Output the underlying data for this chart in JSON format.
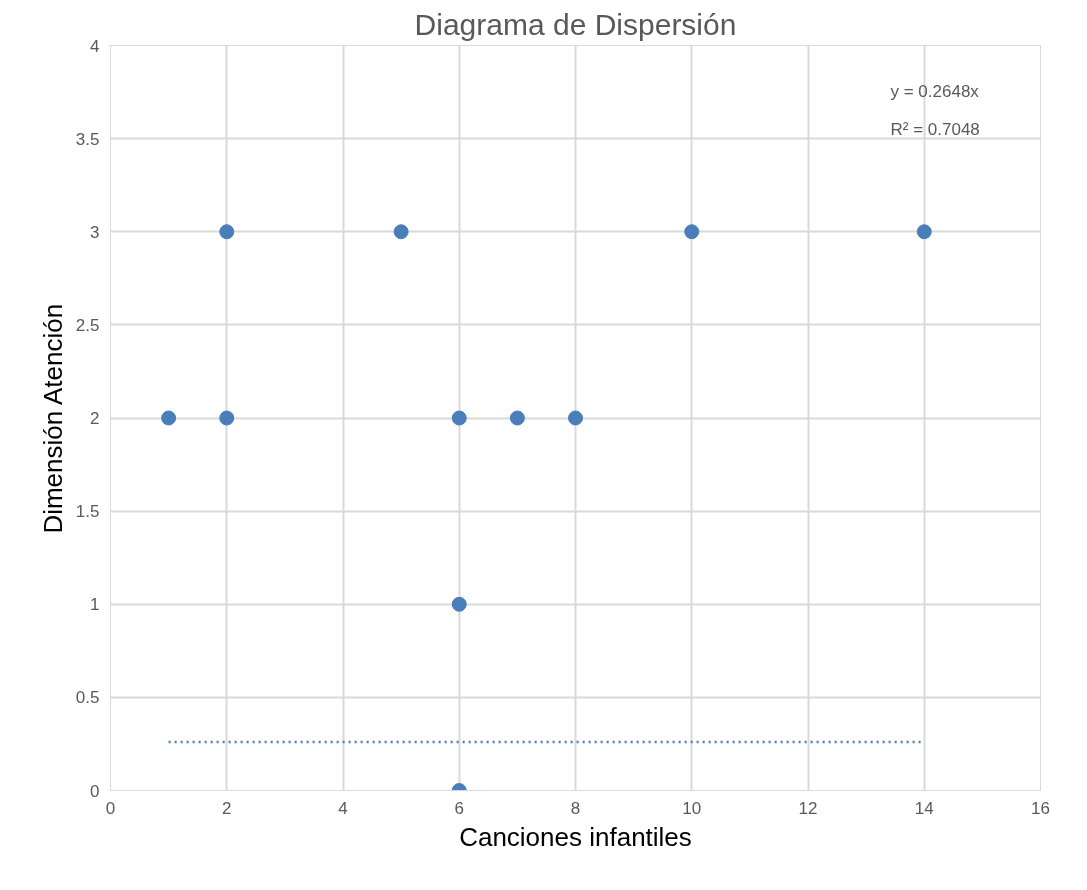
{
  "chart_data": {
    "type": "scatter",
    "title": "Diagrama de Dispersión",
    "xlabel": "Canciones infantiles",
    "ylabel": "Dimensión Atención",
    "annotations": [
      "y = 0.2648x",
      "R² = 0.7048"
    ],
    "x": [
      1,
      2,
      2,
      5,
      6,
      6,
      6,
      7,
      8,
      10,
      14
    ],
    "series": [
      {
        "color": "#4a7ebb",
        "values": [
          2,
          3,
          2,
          3,
          2,
          1,
          0,
          2,
          2,
          3,
          3
        ]
      },
      {
        "type": "line",
        "color": "#4a7ebb",
        "x": [
          1,
          14
        ],
        "values": [
          0.26,
          0.26
        ],
        "line_style": "dotted",
        "marker": "none"
      }
    ],
    "xlim": [
      0,
      16
    ],
    "xticks": [
      0,
      2,
      4,
      6,
      8,
      10,
      12,
      14,
      16
    ],
    "ylim": [
      0,
      4
    ],
    "yticks": [
      0,
      0.5,
      1,
      1.5,
      2,
      2.5,
      3,
      3.5,
      4
    ],
    "grid": true,
    "marker": "circle"
  }
}
